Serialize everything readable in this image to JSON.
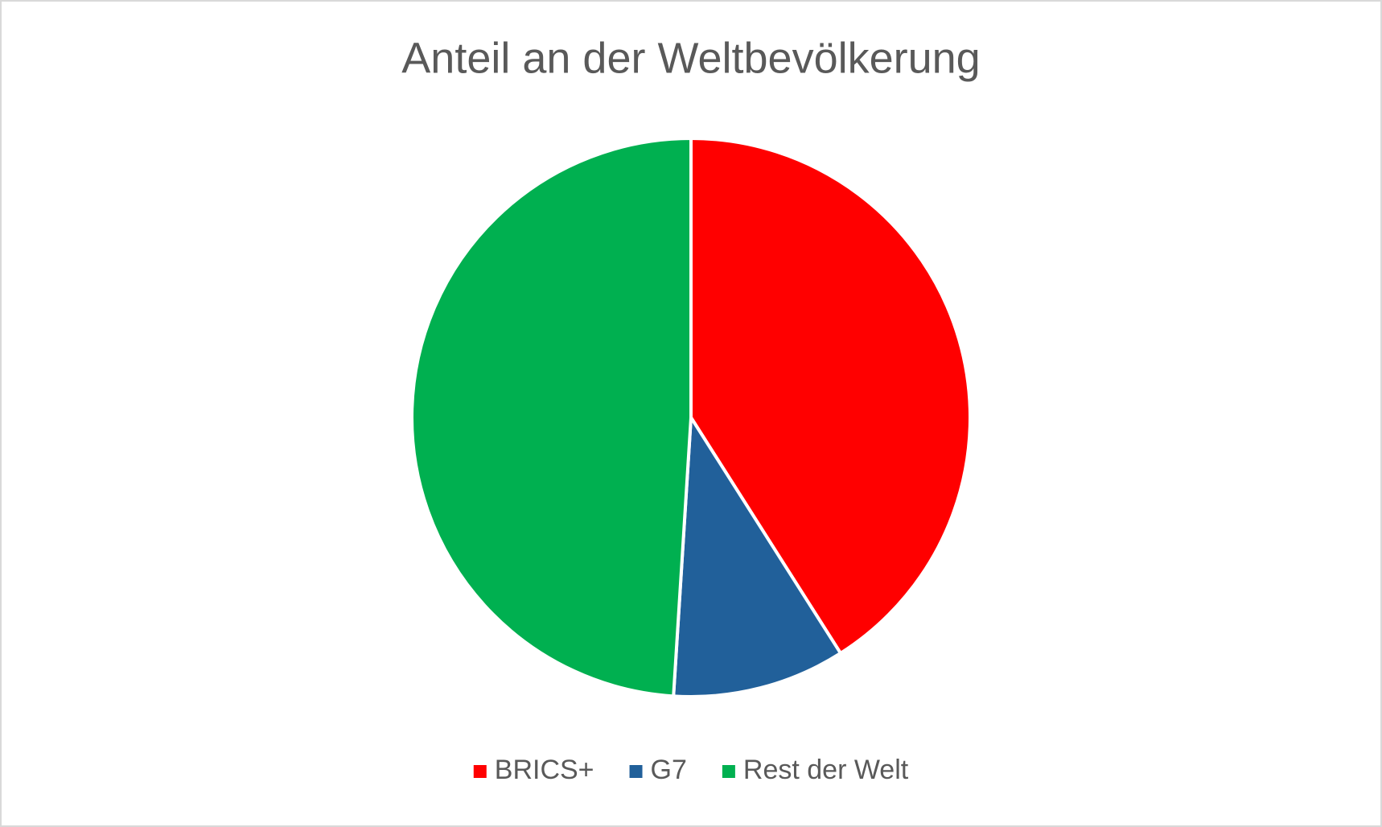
{
  "chart_data": {
    "type": "pie",
    "title": "Anteil an der Weltbevölkerung",
    "categories": [
      "BRICS+",
      "G7",
      "Rest der Welt"
    ],
    "values": [
      41,
      10,
      49
    ],
    "colors": [
      "#ff0000",
      "#21609a",
      "#00b050"
    ],
    "legend": "bottom"
  }
}
